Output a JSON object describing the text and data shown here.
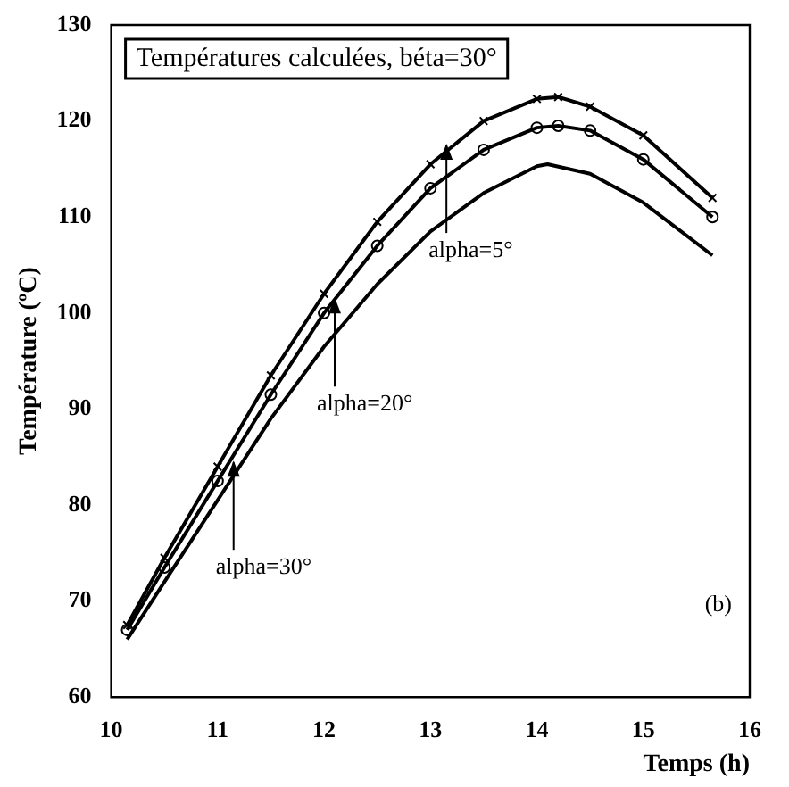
{
  "chart_data": {
    "type": "line",
    "title": "Températures calculées, béta=30°",
    "xlabel": "Temps (h)",
    "ylabel": "Température (ºC)",
    "xlim": [
      10,
      16
    ],
    "xticks": [
      10,
      11,
      12,
      13,
      14,
      15,
      16
    ],
    "ylim": [
      60,
      130
    ],
    "yticks": [
      60,
      70,
      80,
      90,
      100,
      110,
      120,
      130
    ],
    "grid": false,
    "legend": false,
    "series": [
      {
        "color": "#000000",
        "marker": "cross",
        "x": [
          10.15,
          10.5,
          11,
          11.5,
          12,
          12.5,
          13,
          13.5,
          14,
          14.2,
          14.5,
          15,
          15.65
        ],
        "values": [
          67.5,
          74.5,
          84,
          93.5,
          102,
          109.5,
          115.5,
          120,
          122.3,
          122.5,
          121.5,
          118.5,
          112
        ]
      },
      {
        "color": "#000000",
        "marker": "circle",
        "x": [
          10.15,
          10.5,
          11,
          11.5,
          12,
          12.5,
          13,
          13.5,
          14,
          14.2,
          14.5,
          15,
          15.65
        ],
        "values": [
          67,
          73.5,
          82.5,
          91.5,
          100,
          107,
          113,
          117,
          119.3,
          119.5,
          119,
          116,
          110
        ]
      },
      {
        "color": "#000000",
        "marker": "none",
        "x": [
          10.15,
          10.5,
          11,
          11.5,
          12,
          12.5,
          13,
          13.5,
          14,
          14.1,
          14.5,
          15,
          15.65
        ],
        "values": [
          66,
          72,
          80.5,
          89,
          96.5,
          103,
          108.5,
          112.5,
          115.3,
          115.5,
          114.5,
          111.5,
          106
        ]
      }
    ],
    "annotations": [
      {
        "text": "alpha=5°",
        "x": 13.15,
        "y": 118
      },
      {
        "text": "alpha=20°",
        "x": 12.1,
        "y": 102
      },
      {
        "text": "alpha=30°",
        "x": 11.15,
        "y": 85
      },
      "(b)"
    ]
  }
}
